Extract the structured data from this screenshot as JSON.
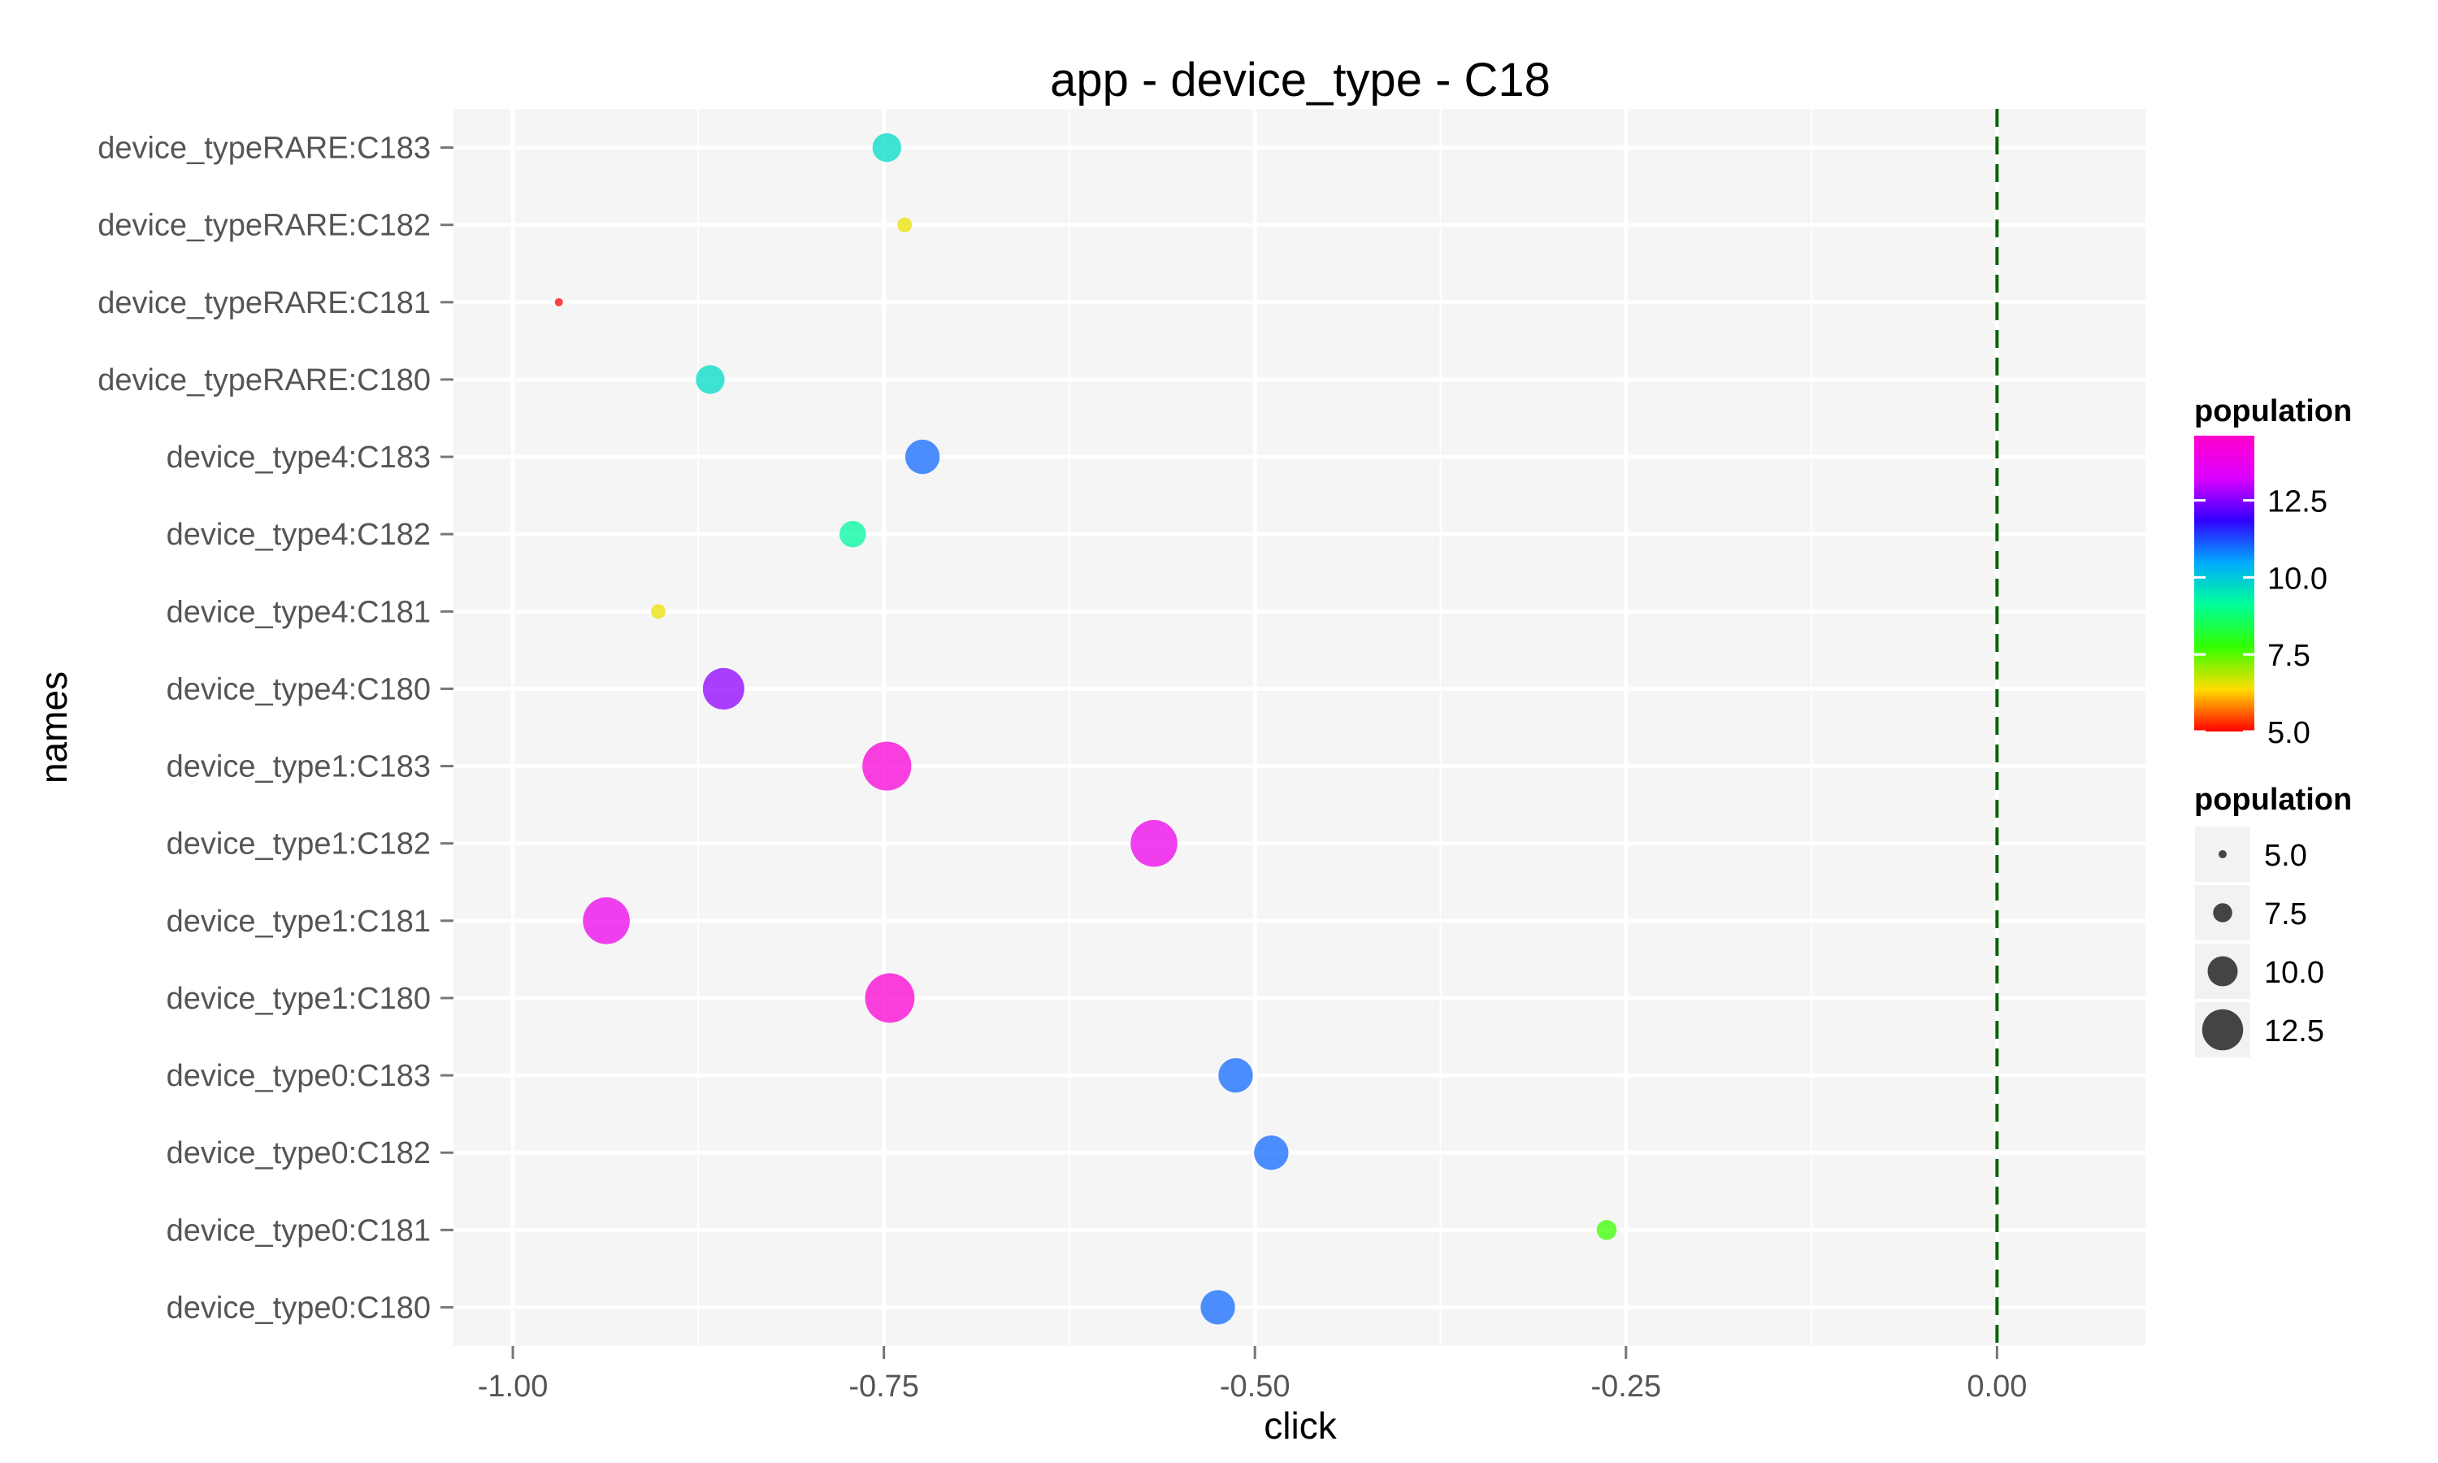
{
  "chart_data": {
    "type": "scatter",
    "title": "app - device_type - C18",
    "xlabel": "click",
    "ylabel": "names",
    "xlim": [
      -1.04,
      0.1
    ],
    "x_ticks": [
      -1.0,
      -0.75,
      -0.5,
      -0.25,
      0.0
    ],
    "x_tick_labels": [
      "-1.00",
      "-0.75",
      "-0.50",
      "-0.25",
      "0.00"
    ],
    "reference_line": {
      "x": 0.0,
      "style": "dashed",
      "color": "#006400"
    },
    "categories": [
      "device_typeRARE:C183",
      "device_typeRARE:C182",
      "device_typeRARE:C181",
      "device_typeRARE:C180",
      "device_type4:C183",
      "device_type4:C182",
      "device_type4:C181",
      "device_type4:C180",
      "device_type1:C183",
      "device_type1:C182",
      "device_type1:C181",
      "device_type1:C180",
      "device_type0:C183",
      "device_type0:C182",
      "device_type0:C181",
      "device_type0:C180"
    ],
    "points": [
      {
        "name": "device_typeRARE:C183",
        "click": -0.748,
        "population": 9.7
      },
      {
        "name": "device_typeRARE:C182",
        "click": -0.736,
        "population": 6.5
      },
      {
        "name": "device_typeRARE:C181",
        "click": -0.969,
        "population": 5.0
      },
      {
        "name": "device_typeRARE:C180",
        "click": -0.867,
        "population": 9.7
      },
      {
        "name": "device_type4:C183",
        "click": -0.724,
        "population": 11.0
      },
      {
        "name": "device_type4:C182",
        "click": -0.771,
        "population": 9.2
      },
      {
        "name": "device_type4:C181",
        "click": -0.902,
        "population": 6.5
      },
      {
        "name": "device_type4:C180",
        "click": -0.858,
        "population": 12.6
      },
      {
        "name": "device_type1:C183",
        "click": -0.748,
        "population": 14.3
      },
      {
        "name": "device_type1:C182",
        "click": -0.568,
        "population": 13.8
      },
      {
        "name": "device_type1:C181",
        "click": -0.937,
        "population": 13.8
      },
      {
        "name": "device_type1:C180",
        "click": -0.746,
        "population": 14.4
      },
      {
        "name": "device_type0:C183",
        "click": -0.513,
        "population": 11.0
      },
      {
        "name": "device_type0:C182",
        "click": -0.489,
        "population": 11.0
      },
      {
        "name": "device_type0:C181",
        "click": -0.263,
        "population": 7.7
      },
      {
        "name": "device_type0:C180",
        "click": -0.525,
        "population": 11.0
      }
    ],
    "color_legend": {
      "title": "population",
      "range": [
        5.0,
        14.6
      ],
      "ticks": [
        5.0,
        7.5,
        10.0,
        12.5
      ],
      "tick_labels": [
        "5.0",
        "7.5",
        "10.0",
        "12.5"
      ],
      "colors": [
        "#ff0000",
        "#ffdd00",
        "#33ff00",
        "#00ff99",
        "#00aaff",
        "#3300ff",
        "#dd00ff",
        "#ff00cc"
      ]
    },
    "size_legend": {
      "title": "population",
      "values": [
        5.0,
        7.5,
        10.0,
        12.5
      ],
      "labels": [
        "5.0",
        "7.5",
        "10.0",
        "12.5"
      ],
      "color": "#444444"
    },
    "background": "#f5f5f5",
    "grid": true,
    "legend_position": "right"
  }
}
